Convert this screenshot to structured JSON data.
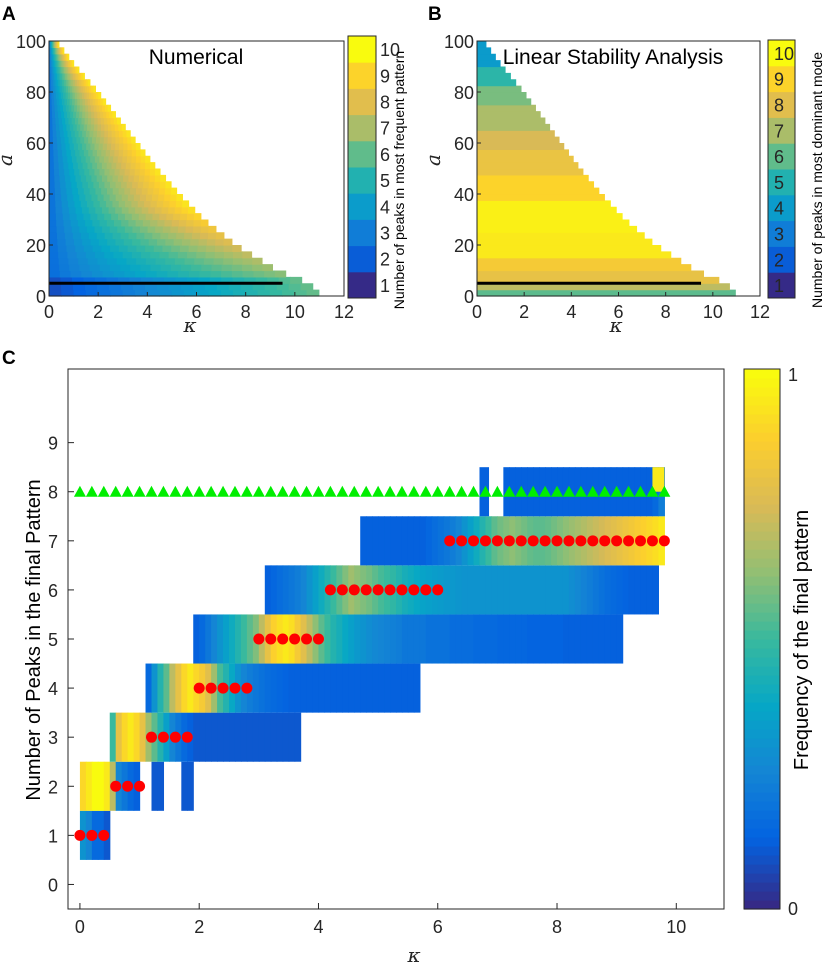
{
  "panels": {
    "A": "A",
    "B": "B",
    "C": "C"
  },
  "colors": {
    "parula": [
      "#352a87",
      "#0363e1",
      "#1485d4",
      "#06a7c6",
      "#38b99e",
      "#92bf73",
      "#d9ba56",
      "#fcce2e",
      "#f9fb0e"
    ],
    "reference_line": "#000000",
    "red_markers": "#ff0000",
    "green_markers": "#00ee00"
  },
  "chart_data": [
    {
      "id": "A",
      "type": "heatmap",
      "title": "Numerical",
      "xlabel": "κ",
      "ylabel": "a",
      "xlim": [
        0,
        12
      ],
      "ylim": [
        0,
        100
      ],
      "xticks": [
        "0",
        "2",
        "4",
        "6",
        "8",
        "10",
        "12"
      ],
      "yticks": [
        "0",
        "20",
        "40",
        "60",
        "80",
        "100"
      ],
      "colorbar": {
        "label": "Number of peaks in most frequent pattern",
        "ticks": [
          "1",
          "2",
          "3",
          "4",
          "5",
          "6",
          "7",
          "8",
          "9",
          "10"
        ],
        "range": [
          0.5,
          10.5
        ]
      },
      "reference_line": {
        "x": [
          0,
          9.5
        ],
        "y": 5
      },
      "boundary_kappa_max": [
        [
          0,
          11.1
        ],
        [
          5,
          10.6
        ],
        [
          10,
          9.3
        ],
        [
          20,
          7.6
        ],
        [
          30,
          6.3
        ],
        [
          40,
          5.3
        ],
        [
          50,
          4.4
        ],
        [
          60,
          3.6
        ],
        [
          70,
          2.8
        ],
        [
          80,
          2.0
        ],
        [
          90,
          1.1
        ],
        [
          100,
          0.3
        ]
      ]
    },
    {
      "id": "B",
      "type": "heatmap",
      "title": "Linear Stability Analysis",
      "xlabel": "κ",
      "ylabel": "a",
      "xlim": [
        0,
        12
      ],
      "ylim": [
        0,
        100
      ],
      "xticks": [
        "0",
        "2",
        "4",
        "6",
        "8",
        "10",
        "12"
      ],
      "yticks": [
        "0",
        "20",
        "40",
        "60",
        "80",
        "100"
      ],
      "colorbar": {
        "label": "Number of peaks in most dominant mode",
        "ticks": [
          "1",
          "2",
          "3",
          "4",
          "5",
          "6",
          "7",
          "8",
          "9",
          "10"
        ],
        "range": [
          0.5,
          10.5
        ]
      },
      "reference_line": {
        "x": [
          0,
          9.5
        ],
        "y": 5
      },
      "bands": [
        {
          "a_from": 0,
          "a_to": 2,
          "value": 6
        },
        {
          "a_from": 2,
          "a_to": 5,
          "value": 7.5
        },
        {
          "a_from": 5,
          "a_to": 10,
          "value": 8.5
        },
        {
          "a_from": 10,
          "a_to": 16,
          "value": 9
        },
        {
          "a_from": 16,
          "a_to": 25,
          "value": 10
        },
        {
          "a_from": 25,
          "a_to": 37,
          "value": 10.2
        },
        {
          "a_from": 37,
          "a_to": 47,
          "value": 9.4
        },
        {
          "a_from": 47,
          "a_to": 57,
          "value": 8.6
        },
        {
          "a_from": 57,
          "a_to": 66,
          "value": 8
        },
        {
          "a_from": 66,
          "a_to": 74,
          "value": 7.2
        },
        {
          "a_from": 74,
          "a_to": 82,
          "value": 6.4
        },
        {
          "a_from": 82,
          "a_to": 90,
          "value": 5.2
        },
        {
          "a_from": 90,
          "a_to": 100,
          "value": 3.8
        }
      ]
    },
    {
      "id": "C",
      "type": "heatmap",
      "xlabel": "κ",
      "ylabel": "Number of Peaks in the final Pattern",
      "xlim": [
        -0.2,
        10.8
      ],
      "ylim": [
        -0.5,
        10.5
      ],
      "xticks": [
        0,
        2,
        4,
        6,
        8,
        10
      ],
      "yticks": [
        0,
        1,
        2,
        3,
        4,
        5,
        6,
        7,
        8,
        9
      ],
      "colorbar": {
        "label": "Frequency of the final pattern",
        "ticks": [
          "0",
          "1"
        ],
        "range": [
          0,
          1
        ]
      },
      "rows": [
        {
          "peaks": 1,
          "kappa_from": 0.0,
          "kappa_to": 0.5,
          "freq": [
            0.3,
            0.25,
            0.15,
            0.15,
            0.1
          ]
        },
        {
          "peaks": 2,
          "kappa_from": 0.0,
          "kappa_to": 1.0,
          "freq": [
            0.9,
            0.95,
            1.0,
            1.0,
            0.95,
            0.7,
            0.25,
            0.2,
            0.15,
            0.12
          ]
        },
        {
          "peaks": 2,
          "kappa_from": 1.2,
          "kappa_to": 1.4,
          "freq": [
            0.1,
            0.1
          ]
        },
        {
          "peaks": 2,
          "kappa_from": 1.7,
          "kappa_to": 1.9,
          "freq": [
            0.1,
            0.1
          ]
        },
        {
          "peaks": 3,
          "kappa_from": 0.5,
          "kappa_to": 3.7,
          "freq": [
            0.5,
            0.8,
            0.9,
            0.95,
            0.9,
            0.8,
            0.65,
            0.55,
            0.45,
            0.35,
            0.25,
            0.2,
            0.15,
            0.12,
            0.1,
            0.1,
            0.1,
            0.1,
            0.1,
            0.1,
            0.1,
            0.1,
            0.1,
            0.1,
            0.1,
            0.1,
            0.1,
            0.1,
            0.1,
            0.1,
            0.1,
            0.1
          ]
        },
        {
          "peaks": 4,
          "kappa_from": 1.1,
          "kappa_to": 5.7,
          "freq": [
            0.15,
            0.3,
            0.45,
            0.55,
            0.7,
            0.8,
            0.9,
            0.95,
            0.9,
            0.85,
            0.78,
            0.65,
            0.52,
            0.45,
            0.38,
            0.3,
            0.25,
            0.22,
            0.2,
            0.18,
            0.16,
            0.15,
            0.14,
            0.13,
            0.12,
            0.12,
            0.12,
            0.12,
            0.12,
            0.12,
            0.12,
            0.12,
            0.12,
            0.12,
            0.12,
            0.12,
            0.12,
            0.12,
            0.12,
            0.12,
            0.12,
            0.12,
            0.12,
            0.12,
            0.12,
            0.12
          ]
        },
        {
          "peaks": 5,
          "kappa_from": 1.9,
          "kappa_to": 9.1,
          "freq": [
            0.12,
            0.15,
            0.2,
            0.25,
            0.3,
            0.35,
            0.4,
            0.45,
            0.5,
            0.55,
            0.6,
            0.7,
            0.8,
            0.88,
            0.92,
            0.95,
            0.92,
            0.85,
            0.78,
            0.7,
            0.62,
            0.55,
            0.5,
            0.45,
            0.42,
            0.38,
            0.35,
            0.32,
            0.3,
            0.28,
            0.26,
            0.25,
            0.24,
            0.23,
            0.22,
            0.2,
            0.2,
            0.2,
            0.2,
            0.18,
            0.18,
            0.18,
            0.18,
            0.16,
            0.16,
            0.16,
            0.16,
            0.15,
            0.15,
            0.15,
            0.15,
            0.14,
            0.14,
            0.14,
            0.14,
            0.14,
            0.13,
            0.13,
            0.13,
            0.13,
            0.13,
            0.13,
            0.12,
            0.12,
            0.12,
            0.12,
            0.12,
            0.12,
            0.12,
            0.12,
            0.12,
            0.12
          ]
        },
        {
          "peaks": 6,
          "kappa_from": 3.1,
          "kappa_to": 9.7,
          "freq": [
            0.12,
            0.14,
            0.16,
            0.18,
            0.2,
            0.22,
            0.25,
            0.3,
            0.35,
            0.4,
            0.45,
            0.5,
            0.55,
            0.6,
            0.65,
            0.62,
            0.6,
            0.58,
            0.55,
            0.52,
            0.5,
            0.48,
            0.45,
            0.42,
            0.4,
            0.38,
            0.36,
            0.35,
            0.34,
            0.33,
            0.32,
            0.32,
            0.31,
            0.3,
            0.3,
            0.3,
            0.3,
            0.3,
            0.3,
            0.3,
            0.3,
            0.3,
            0.3,
            0.3,
            0.3,
            0.3,
            0.3,
            0.3,
            0.3,
            0.3,
            0.3,
            0.28,
            0.26,
            0.24,
            0.22,
            0.2,
            0.18,
            0.16,
            0.15,
            0.14,
            0.13,
            0.12,
            0.12,
            0.12,
            0.12,
            0.12
          ]
        },
        {
          "peaks": 7,
          "kappa_from": 4.7,
          "kappa_to": 9.8,
          "freq": [
            0.12,
            0.12,
            0.12,
            0.12,
            0.12,
            0.12,
            0.12,
            0.12,
            0.12,
            0.12,
            0.12,
            0.14,
            0.16,
            0.18,
            0.2,
            0.22,
            0.25,
            0.3,
            0.35,
            0.4,
            0.45,
            0.5,
            0.55,
            0.58,
            0.6,
            0.62,
            0.6,
            0.58,
            0.56,
            0.55,
            0.55,
            0.56,
            0.58,
            0.6,
            0.62,
            0.64,
            0.66,
            0.68,
            0.7,
            0.72,
            0.74,
            0.76,
            0.78,
            0.8,
            0.82,
            0.84,
            0.86,
            0.88,
            0.9,
            0.92,
            0.95
          ]
        },
        {
          "peaks": 8,
          "kappa_from": 6.7,
          "kappa_to": 6.85,
          "freq": [
            0.12
          ]
        },
        {
          "peaks": 8,
          "kappa_from": 7.1,
          "kappa_to": 9.8,
          "freq": [
            0.12,
            0.12,
            0.12,
            0.12,
            0.12,
            0.12,
            0.12,
            0.12,
            0.12,
            0.12,
            0.12,
            0.12,
            0.12,
            0.12,
            0.12,
            0.12,
            0.12,
            0.12,
            0.12,
            0.12,
            0.12,
            0.12,
            0.12,
            0.12,
            0.12,
            0.15,
            0.22
          ]
        }
      ],
      "peak_8_top_kappa_from": 9.6,
      "peak_8_top_kappa_to": 9.8,
      "peak_8_top_freq": 0.95,
      "red_markers": [
        {
          "peaks": 1,
          "kappa": [
            0.0,
            0.2,
            0.4
          ]
        },
        {
          "peaks": 2,
          "kappa": [
            0.6,
            0.8,
            1.0
          ]
        },
        {
          "peaks": 3,
          "kappa": [
            1.2,
            1.4,
            1.6,
            1.8
          ]
        },
        {
          "peaks": 4,
          "kappa": [
            2.0,
            2.2,
            2.4,
            2.6,
            2.8
          ]
        },
        {
          "peaks": 5,
          "kappa": [
            3.0,
            3.2,
            3.4,
            3.6,
            3.8,
            4.0
          ]
        },
        {
          "peaks": 6,
          "kappa": [
            4.2,
            4.4,
            4.6,
            4.8,
            5.0,
            5.2,
            5.4,
            5.6,
            5.8,
            6.0
          ]
        },
        {
          "peaks": 7,
          "kappa": [
            6.2,
            6.4,
            6.6,
            6.8,
            7.0,
            7.2,
            7.4,
            7.6,
            7.8,
            8.0,
            8.2,
            8.4,
            8.6,
            8.8,
            9.0,
            9.2,
            9.4,
            9.6,
            9.8
          ]
        }
      ],
      "green_markers": {
        "peaks": 8,
        "kappa_from": 0.0,
        "kappa_to": 9.8,
        "step": 0.2
      }
    }
  ]
}
